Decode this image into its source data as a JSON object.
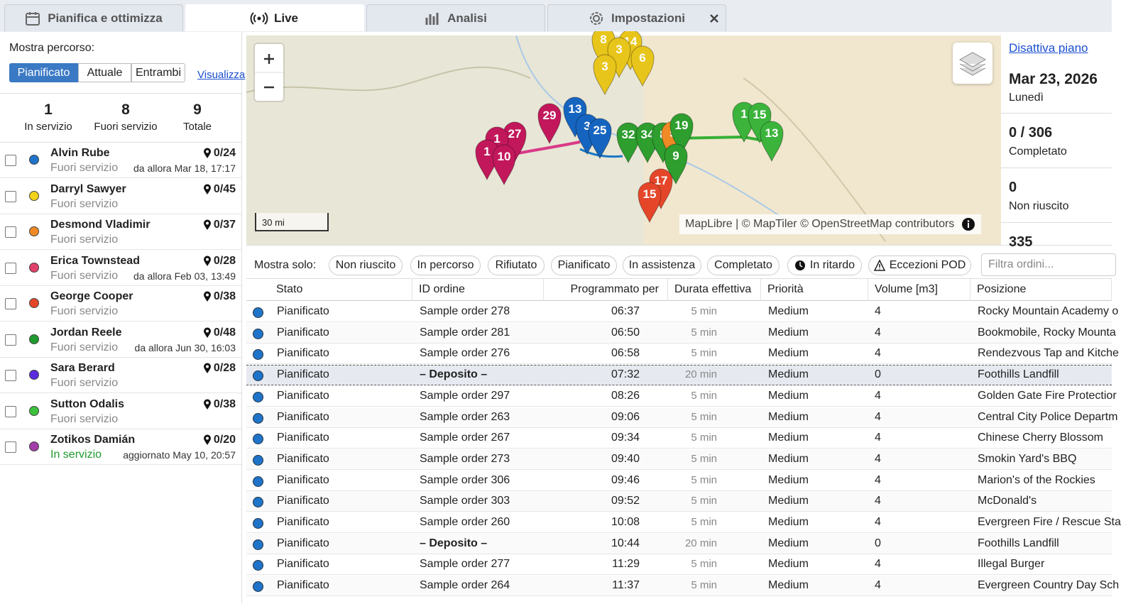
{
  "tabs": [
    "Pianifica e ottimizza",
    "Live",
    "Analisi",
    "Impostazioni"
  ],
  "sidebar": {
    "route_label": "Mostra percorso:",
    "route_options": [
      "Pianificato",
      "Attuale",
      "Entrambi"
    ],
    "view_link": "Visualizza",
    "stats": [
      {
        "value": 1,
        "label": "In servizio"
      },
      {
        "value": 8,
        "label": "Fuori servizio"
      },
      {
        "value": 9,
        "label": "Totale"
      }
    ],
    "drivers": [
      {
        "name": "Alvin Rube",
        "status": "Fuori servizio",
        "orders": "0/24",
        "since": "da allora Mar 18, 17:17",
        "color": "#1f74c9",
        "status_color": "#888"
      },
      {
        "name": "Darryl Sawyer",
        "status": "Fuori servizio",
        "orders": "0/45",
        "color": "#f2d21b",
        "status_color": "#888"
      },
      {
        "name": "Desmond Vladimir",
        "status": "Fuori servizio",
        "orders": "0/37",
        "color": "#f08a24",
        "status_color": "#888"
      },
      {
        "name": "Erica Townstead",
        "status": "Fuori servizio",
        "orders": "0/28",
        "since": "da allora Feb 03, 13:49",
        "color": "#e0406b",
        "status_color": "#888"
      },
      {
        "name": "George Cooper",
        "status": "Fuori servizio",
        "orders": "0/38",
        "color": "#e5462a",
        "status_color": "#888"
      },
      {
        "name": "Jordan Reele",
        "status": "Fuori servizio",
        "orders": "0/48",
        "since": "da allora Jun 30, 16:03",
        "color": "#1f9a2e",
        "status_color": "#888"
      },
      {
        "name": "Sara Berard",
        "status": "Fuori servizio",
        "orders": "0/28",
        "color": "#5b2be0",
        "status_color": "#888"
      },
      {
        "name": "Sutton Odalis",
        "status": "Fuori servizio",
        "orders": "0/38",
        "color": "#3cc23c",
        "status_color": "#888"
      },
      {
        "name": "Zotikos Damián",
        "status": "In servizio",
        "orders": "0/20",
        "since": "aggiornato May 10, 20:57",
        "color": "#a23ca8",
        "status_color": "#1f9a2e"
      }
    ]
  },
  "map": {
    "scale": "30 mi",
    "attribution": "MapLibre | © MapTiler © OpenStreetMap contributors",
    "pins": [
      {
        "label": 8,
        "color": "#e8c51a"
      },
      {
        "label": 14,
        "color": "#e8c51a"
      },
      {
        "label": 3,
        "color": "#e8c51a"
      },
      {
        "label": 6,
        "color": "#e8c51a"
      },
      {
        "label": 3,
        "color": "#e8c51a"
      },
      {
        "label": 29,
        "color": "#c2185b"
      },
      {
        "label": 27,
        "color": "#c2185b"
      },
      {
        "label": 1,
        "color": "#c2185b"
      },
      {
        "label": 1,
        "color": "#c2185b"
      },
      {
        "label": 10,
        "color": "#c2185b"
      },
      {
        "label": 13,
        "color": "#1565c0"
      },
      {
        "label": 3,
        "color": "#1565c0"
      },
      {
        "label": 25,
        "color": "#1565c0"
      },
      {
        "label": 32,
        "color": "#2e9e2e"
      },
      {
        "label": 34,
        "color": "#2e9e2e"
      },
      {
        "label": 8,
        "color": "#2e9e2e"
      },
      {
        "label": 5,
        "color": "#f08a24"
      },
      {
        "label": 19,
        "color": "#2e9e2e"
      },
      {
        "label": 9,
        "color": "#2e9e2e"
      },
      {
        "label": 17,
        "color": "#e5462a"
      },
      {
        "label": 15,
        "color": "#e5462a"
      },
      {
        "label": 1,
        "color": "#3cb43c"
      },
      {
        "label": 15,
        "color": "#3cb43c"
      },
      {
        "label": 13,
        "color": "#3cb43c"
      }
    ]
  },
  "summary": {
    "link": "Disattiva piano",
    "date": "Mar 23, 2026",
    "weekday": "Lunedì",
    "stats": [
      {
        "value": "0 / 306",
        "label": "Completato"
      },
      {
        "value": "0",
        "label": "Non riuscito"
      },
      {
        "value": "335"
      }
    ]
  },
  "filters": {
    "label": "Mostra solo:",
    "chips": [
      "Non riuscito",
      "In percorso",
      "Rifiutato",
      "Pianificato",
      "In assistenza",
      "Completato",
      "In ritardo",
      "Eccezioni POD"
    ],
    "search_placeholder": "Filtra ordini..."
  },
  "table": {
    "headers": [
      "Stato",
      "ID ordine",
      "Programmato per",
      "Durata effettiva",
      "Priorità",
      "Volume [m3]",
      "Posizione"
    ],
    "selected_row": 3,
    "status_color": "#1f74c9",
    "rows": [
      [
        "Pianificato",
        "Sample order 278",
        "06:37",
        "5 min",
        "Medium",
        4,
        "Rocky Mountain Academy o"
      ],
      [
        "Pianificato",
        "Sample order 281",
        "06:50",
        "5 min",
        "Medium",
        4,
        "Bookmobile, Rocky Mounta"
      ],
      [
        "Pianificato",
        "Sample order 276",
        "06:58",
        "5 min",
        "Medium",
        4,
        "Rendezvous Tap and Kitche"
      ],
      [
        "Pianificato",
        "– Deposito –",
        "07:32",
        "20 min",
        "Medium",
        0,
        "Foothills Landfill"
      ],
      [
        "Pianificato",
        "Sample order 297",
        "08:26",
        "5 min",
        "Medium",
        4,
        "Golden Gate Fire Protectior"
      ],
      [
        "Pianificato",
        "Sample order 263",
        "09:06",
        "5 min",
        "Medium",
        4,
        "Central City Police Departm"
      ],
      [
        "Pianificato",
        "Sample order 267",
        "09:34",
        "5 min",
        "Medium",
        4,
        "Chinese Cherry Blossom"
      ],
      [
        "Pianificato",
        "Sample order 273",
        "09:40",
        "5 min",
        "Medium",
        4,
        "Smokin Yard's BBQ"
      ],
      [
        "Pianificato",
        "Sample order 306",
        "09:46",
        "5 min",
        "Medium",
        4,
        "Marion's of the Rockies"
      ],
      [
        "Pianificato",
        "Sample order 303",
        "09:52",
        "5 min",
        "Medium",
        4,
        "McDonald's"
      ],
      [
        "Pianificato",
        "Sample order 260",
        "10:08",
        "5 min",
        "Medium",
        4,
        "Evergreen Fire / Rescue Sta"
      ],
      [
        "Pianificato",
        "– Deposito –",
        "10:44",
        "20 min",
        "Medium",
        0,
        "Foothills Landfill"
      ],
      [
        "Pianificato",
        "Sample order 277",
        "11:29",
        "5 min",
        "Medium",
        4,
        "Illegal Burger"
      ],
      [
        "Pianificato",
        "Sample order 264",
        "11:37",
        "5 min",
        "Medium",
        4,
        "Evergreen Country Day Sch"
      ]
    ]
  }
}
